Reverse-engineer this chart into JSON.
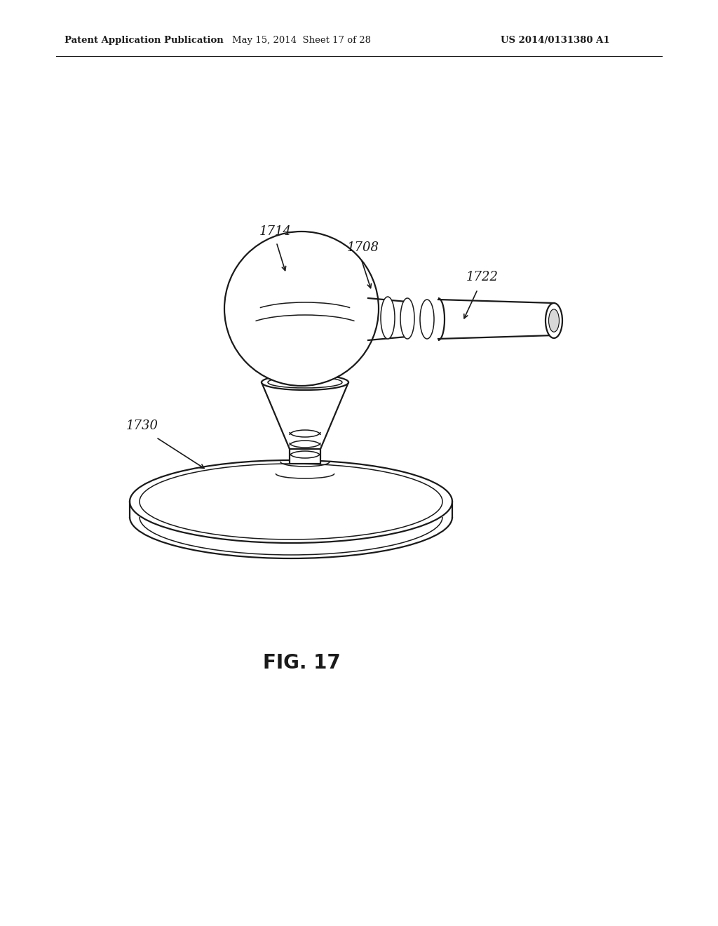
{
  "header_left": "Patent Application Publication",
  "header_mid": "May 15, 2014  Sheet 17 of 28",
  "header_right": "US 2014/0131380 A1",
  "fig_label": "FIG. 17",
  "background_color": "#ffffff",
  "line_color": "#1a1a1a",
  "header_fontsize": 9.5,
  "fig_label_fontsize": 20,
  "label_fontsize": 13
}
